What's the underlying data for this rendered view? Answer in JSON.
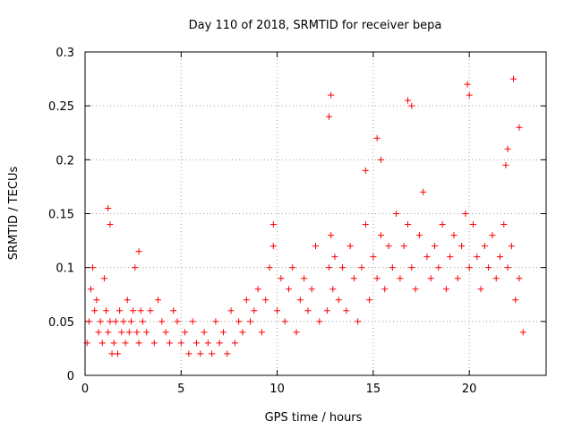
{
  "chart_data": {
    "type": "scatter",
    "title": "Day 110 of 2018, SRMTID for receiver bepa",
    "xlabel": "GPS time / hours",
    "ylabel": "SRMTID / TECUs",
    "xlim": [
      0,
      24
    ],
    "ylim": [
      0,
      0.3
    ],
    "xticks": [
      0,
      5,
      10,
      15,
      20
    ],
    "yticks": [
      0,
      0.05,
      0.1,
      0.15,
      0.2,
      0.25,
      0.3
    ],
    "xtick_labels": [
      "0",
      "5",
      "10",
      "15",
      "20"
    ],
    "ytick_labels": [
      "0",
      "0.05",
      "0.1",
      "0.15",
      "0.2",
      "0.25",
      "0.3"
    ],
    "grid": true,
    "marker": "+",
    "color": "#ff0000",
    "series": [
      {
        "name": "SRMTID",
        "x": [
          0.1,
          0.2,
          0.3,
          0.4,
          0.5,
          0.6,
          0.7,
          0.8,
          0.9,
          1.0,
          1.1,
          1.2,
          1.3,
          1.4,
          1.5,
          1.6,
          1.7,
          1.8,
          1.9,
          2.0,
          2.1,
          2.2,
          2.3,
          2.4,
          2.5,
          2.6,
          2.7,
          2.8,
          2.9,
          3.0,
          3.2,
          3.4,
          3.6,
          3.8,
          4.0,
          4.2,
          4.4,
          4.6,
          4.8,
          5.0,
          5.2,
          5.4,
          5.6,
          5.8,
          6.0,
          6.2,
          6.4,
          6.6,
          6.8,
          7.0,
          7.2,
          7.4,
          7.6,
          7.8,
          8.0,
          8.2,
          8.4,
          8.6,
          8.8,
          9.0,
          9.2,
          9.4,
          9.6,
          9.8,
          10.0,
          10.2,
          10.4,
          10.6,
          10.8,
          11.0,
          11.2,
          11.4,
          11.6,
          11.8,
          12.0,
          12.2,
          12.6,
          12.7,
          12.8,
          12.9,
          13.0,
          13.2,
          13.4,
          13.6,
          13.8,
          14.0,
          14.2,
          14.4,
          14.6,
          14.8,
          15.0,
          15.2,
          15.4,
          15.6,
          15.8,
          16.0,
          16.2,
          16.4,
          16.6,
          16.8,
          17.0,
          17.2,
          17.4,
          17.6,
          17.8,
          18.0,
          18.2,
          18.4,
          18.6,
          18.8,
          19.0,
          19.2,
          19.4,
          19.6,
          19.8,
          20.0,
          20.2,
          20.4,
          20.6,
          20.8,
          21.0,
          21.2,
          21.4,
          21.6,
          21.8,
          22.0,
          22.2,
          22.4,
          22.6,
          22.8,
          1.2,
          1.3,
          2.8,
          9.8,
          12.8,
          16.8,
          17.0,
          19.9,
          20.0,
          21.9,
          22.0,
          22.3,
          22.6,
          15.2,
          15.4,
          14.6,
          12.7
        ],
        "y": [
          0.03,
          0.05,
          0.08,
          0.1,
          0.06,
          0.07,
          0.04,
          0.05,
          0.03,
          0.09,
          0.06,
          0.04,
          0.05,
          0.02,
          0.03,
          0.05,
          0.02,
          0.06,
          0.04,
          0.05,
          0.03,
          0.07,
          0.04,
          0.05,
          0.06,
          0.1,
          0.04,
          0.03,
          0.06,
          0.05,
          0.04,
          0.06,
          0.03,
          0.07,
          0.05,
          0.04,
          0.03,
          0.06,
          0.05,
          0.03,
          0.04,
          0.02,
          0.05,
          0.03,
          0.02,
          0.04,
          0.03,
          0.02,
          0.05,
          0.03,
          0.04,
          0.02,
          0.06,
          0.03,
          0.05,
          0.04,
          0.07,
          0.05,
          0.06,
          0.08,
          0.04,
          0.07,
          0.1,
          0.12,
          0.06,
          0.09,
          0.05,
          0.08,
          0.1,
          0.04,
          0.07,
          0.09,
          0.06,
          0.08,
          0.12,
          0.05,
          0.06,
          0.1,
          0.13,
          0.08,
          0.11,
          0.07,
          0.1,
          0.06,
          0.12,
          0.09,
          0.05,
          0.1,
          0.14,
          0.07,
          0.11,
          0.09,
          0.13,
          0.08,
          0.12,
          0.1,
          0.15,
          0.09,
          0.12,
          0.14,
          0.1,
          0.08,
          0.13,
          0.17,
          0.11,
          0.09,
          0.12,
          0.1,
          0.14,
          0.08,
          0.11,
          0.13,
          0.09,
          0.12,
          0.15,
          0.1,
          0.14,
          0.11,
          0.08,
          0.12,
          0.1,
          0.13,
          0.09,
          0.11,
          0.14,
          0.1,
          0.12,
          0.07,
          0.09,
          0.04,
          0.155,
          0.14,
          0.115,
          0.14,
          0.26,
          0.255,
          0.25,
          0.27,
          0.26,
          0.195,
          0.21,
          0.275,
          0.23,
          0.22,
          0.2,
          0.19,
          0.24
        ]
      }
    ]
  }
}
